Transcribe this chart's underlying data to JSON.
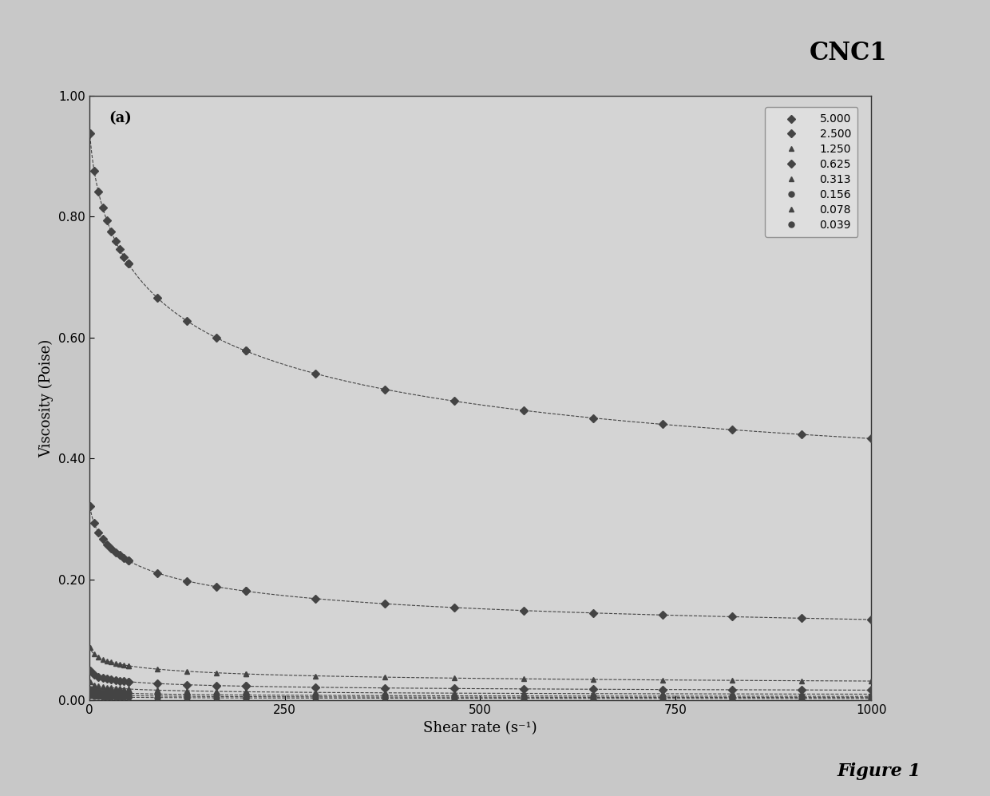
{
  "title": "CNC1",
  "subtitle": "(a)",
  "xlabel": "Shear rate (s⁻¹)",
  "ylabel": "Viscosity (Poise)",
  "xlim": [
    0,
    1000
  ],
  "ylim": [
    0.0,
    1.0
  ],
  "yticks": [
    0.0,
    0.2,
    0.4,
    0.6,
    0.8,
    1.0
  ],
  "xticks": [
    0,
    250,
    500,
    750,
    1000
  ],
  "concentrations": [
    "5.000",
    "2.500",
    "1.250",
    "0.625",
    "0.313",
    "0.156",
    "0.078",
    "0.039"
  ],
  "background_color": "#e8e8e8",
  "plot_bg_color": "#d8d8d8",
  "figure_label": "Figure 1",
  "params": {
    "5.000": [
      0.97,
      0.285,
      0.008,
      0.62
    ],
    "2.500": [
      0.34,
      0.085,
      0.012,
      0.58
    ],
    "1.250": [
      0.095,
      0.02,
      0.02,
      0.55
    ],
    "0.625": [
      0.055,
      0.01,
      0.025,
      0.52
    ],
    "0.313": [
      0.035,
      0.006,
      0.03,
      0.5
    ],
    "0.156": [
      0.022,
      0.004,
      0.035,
      0.48
    ],
    "0.078": [
      0.015,
      0.003,
      0.04,
      0.46
    ],
    "0.039": [
      0.01,
      0.002,
      0.045,
      0.44
    ]
  },
  "marker_styles": [
    "D",
    "D",
    "^",
    "D",
    "^",
    "o",
    "^",
    "o"
  ],
  "marker_sizes": [
    5,
    5,
    5,
    5,
    5,
    5,
    5,
    5
  ],
  "line_color": "#444444",
  "n_markers": 25
}
